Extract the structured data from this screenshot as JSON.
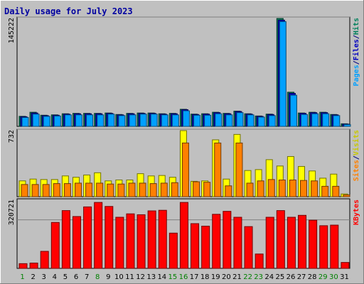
{
  "chart_data": [
    {
      "type": "bar",
      "title": "Daily usage for July 2023",
      "categories": [
        "1",
        "2",
        "3",
        "4",
        "5",
        "6",
        "7",
        "8",
        "9",
        "10",
        "11",
        "12",
        "13",
        "14",
        "15",
        "16",
        "17",
        "18",
        "19",
        "20",
        "21",
        "22",
        "23",
        "24",
        "25",
        "26",
        "27",
        "28",
        "29",
        "30",
        "31"
      ],
      "weekend_days": [
        1,
        8,
        15,
        16,
        22,
        23,
        29,
        30
      ],
      "ylabel": "Hits / Files / Pages",
      "ylabel_parts": [
        {
          "text": "Pages",
          "color": "#00a0ff"
        },
        {
          "text": "/",
          "color": "#000080"
        },
        {
          "text": "Files",
          "color": "#0000c0"
        },
        {
          "text": "/",
          "color": "#000080"
        },
        {
          "text": "Hits",
          "color": "#00805c"
        }
      ],
      "y_tick_label": "145222",
      "y_max": 145222,
      "series": [
        {
          "name": "Hits",
          "color": "#00805c",
          "values": [
            13500,
            19000,
            15000,
            15500,
            17000,
            17500,
            17500,
            17500,
            18000,
            16000,
            17500,
            18000,
            18000,
            17000,
            17500,
            23000,
            16500,
            17000,
            19000,
            17500,
            20500,
            17000,
            14000,
            16500,
            145222,
            46000,
            18000,
            19000,
            19000,
            16000,
            3500
          ]
        },
        {
          "name": "Files",
          "color": "#0000c0",
          "values": [
            13000,
            18000,
            14500,
            15000,
            16500,
            17000,
            17000,
            17000,
            17500,
            15500,
            17000,
            17500,
            17500,
            16500,
            17000,
            22500,
            16000,
            16500,
            18500,
            17000,
            20000,
            16500,
            13500,
            16000,
            143000,
            44500,
            17500,
            18500,
            18500,
            15500,
            3000
          ]
        },
        {
          "name": "Pages",
          "color": "#00a0ff",
          "values": [
            12000,
            16500,
            13500,
            14000,
            15500,
            15500,
            15500,
            15500,
            16500,
            14500,
            15500,
            16500,
            16500,
            15500,
            15500,
            21000,
            15000,
            15000,
            17000,
            15500,
            18500,
            15500,
            12500,
            14500,
            141000,
            42000,
            16000,
            17000,
            17000,
            14500,
            2500
          ]
        }
      ]
    },
    {
      "type": "bar",
      "ylabel": "Visits / Sites",
      "ylabel_parts": [
        {
          "text": "Sites",
          "color": "#ff8000"
        },
        {
          "text": "/",
          "color": "#000080"
        },
        {
          "text": "Visits",
          "color": "#c8c800"
        }
      ],
      "y_tick_label": "732",
      "y_max": 732,
      "series": [
        {
          "name": "Visits",
          "color": "#ffff00",
          "values": [
            175,
            195,
            190,
            190,
            230,
            215,
            240,
            265,
            175,
            185,
            185,
            255,
            230,
            235,
            215,
            732,
            170,
            175,
            630,
            195,
            690,
            290,
            300,
            410,
            340,
            445,
            335,
            285,
            205,
            250,
            30
          ]
        },
        {
          "name": "Sites",
          "color": "#ff8000",
          "values": [
            135,
            135,
            135,
            145,
            145,
            150,
            150,
            150,
            140,
            140,
            150,
            150,
            145,
            150,
            155,
            595,
            165,
            160,
            595,
            120,
            595,
            150,
            175,
            190,
            185,
            185,
            180,
            175,
            115,
            115,
            20
          ]
        }
      ]
    },
    {
      "type": "bar",
      "ylabel": "KBytes",
      "ylabel_parts": [
        {
          "text": "KBytes",
          "color": "#ff0000"
        }
      ],
      "y_tick_label": "320721",
      "y_max": 460000,
      "series": [
        {
          "name": "KBytes",
          "color": "#ff0000",
          "values": [
            32000,
            36000,
            115000,
            310000,
            390000,
            350000,
            415000,
            445000,
            418000,
            345000,
            368000,
            362000,
            388000,
            392000,
            238000,
            445000,
            302000,
            285000,
            365000,
            385000,
            345000,
            282000,
            97000,
            345000,
            390000,
            345000,
            358000,
            325000,
            288000,
            292000,
            40000
          ]
        }
      ]
    }
  ]
}
